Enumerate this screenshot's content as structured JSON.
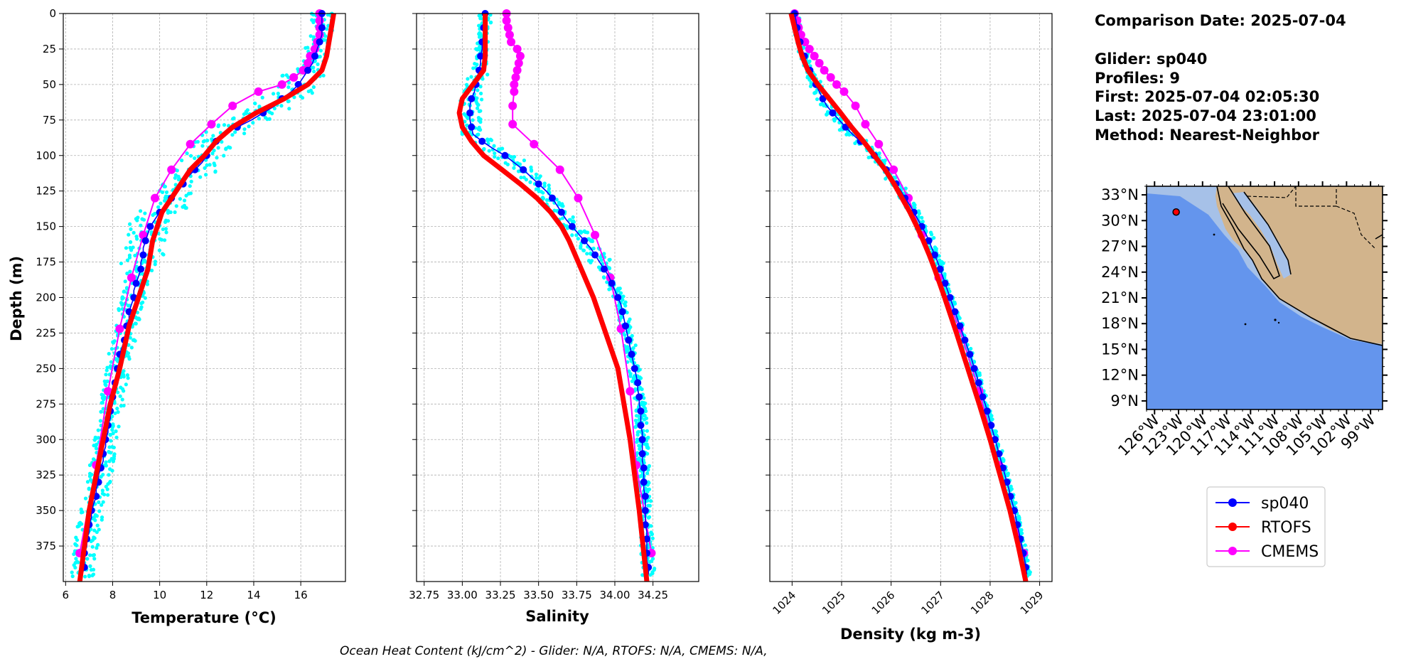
{
  "info": {
    "date": "Comparison Date: 2025-07-04",
    "glider": "Glider: sp040",
    "profiles": "Profiles: 9",
    "first": "First: 2025-07-04 02:05:30",
    "last": "Last: 2025-07-04 23:01:00",
    "method": "Method: Nearest-Neighbor"
  },
  "footer": "Ocean Heat Content (kJ/cm^2) - Glider: N/A,  RTOFS: N/A,  CMEMS: N/A,",
  "legend": [
    {
      "label": "sp040",
      "color": "#0000ff"
    },
    {
      "label": "RTOFS",
      "color": "#ff0000"
    },
    {
      "label": "CMEMS",
      "color": "#ff00ff"
    }
  ],
  "colors": {
    "glider_raw": "#00ffff",
    "sp040": "#0000ff",
    "rtofs": "#ff0000",
    "cmems": "#ff00ff",
    "ocean": "#6495ed",
    "land": "#d2b48c",
    "lakes": "#a6c1e8",
    "marker": "#ff0000"
  },
  "chart_data": [
    {
      "type": "line",
      "xlabel": "Temperature (°C)",
      "ylabel": "Depth (m)",
      "xlim": [
        5.9,
        17.9
      ],
      "ylim": [
        400,
        0
      ],
      "x_ticks": [
        6,
        8,
        10,
        12,
        14,
        16
      ],
      "y_ticks": [
        0,
        25,
        50,
        75,
        100,
        125,
        150,
        175,
        200,
        225,
        250,
        275,
        300,
        325,
        350,
        375
      ],
      "grid": true,
      "series": [
        {
          "name": "sp040",
          "depth": [
            0,
            5,
            10,
            15,
            20,
            25,
            30,
            35,
            40,
            45,
            50,
            55,
            60,
            65,
            70,
            75,
            80,
            85,
            90,
            95,
            100,
            105,
            110,
            115,
            120,
            125,
            130,
            135,
            140,
            145,
            150,
            155,
            160,
            165,
            170,
            175,
            180,
            185,
            190,
            195,
            200,
            205,
            210,
            215,
            220,
            225,
            230,
            235,
            240,
            245,
            250,
            255,
            260,
            265,
            270,
            275,
            280,
            285,
            290,
            295,
            300,
            305,
            310,
            315,
            320,
            325,
            330,
            335,
            340,
            345,
            350,
            355,
            360,
            365,
            370,
            375,
            380,
            385,
            390,
            395
          ],
          "values": [
            16.9,
            16.9,
            16.9,
            16.9,
            16.8,
            16.7,
            16.6,
            16.5,
            16.3,
            16.1,
            15.9,
            15.6,
            15.2,
            14.9,
            14.4,
            13.9,
            13.3,
            12.7,
            12.4,
            12.2,
            12.0,
            11.8,
            11.5,
            11.2,
            11.0,
            10.8,
            10.5,
            10.3,
            10.0,
            9.8,
            9.6,
            9.5,
            9.4,
            9.3,
            9.3,
            9.2,
            9.2,
            9.1,
            9.0,
            8.9,
            8.9,
            8.8,
            8.7,
            8.7,
            8.6,
            8.6,
            8.5,
            8.4,
            8.3,
            8.3,
            8.2,
            8.2,
            8.1,
            8.1,
            8.0,
            8.0,
            7.9,
            7.9,
            7.8,
            7.8,
            7.7,
            7.7,
            7.6,
            7.6,
            7.5,
            7.4,
            7.4,
            7.3,
            7.3,
            7.2,
            7.1,
            7.1,
            7.0,
            7.0,
            6.9,
            6.9,
            6.8,
            6.8,
            6.8,
            6.7
          ]
        },
        {
          "name": "RTOFS",
          "depth": [
            0,
            10,
            20,
            30,
            40,
            50,
            60,
            70,
            80,
            90,
            100,
            110,
            120,
            130,
            140,
            150,
            160,
            170,
            180,
            190,
            200,
            220,
            250,
            275,
            300,
            325,
            350,
            375,
            400
          ],
          "values": [
            17.4,
            17.3,
            17.2,
            17.1,
            16.9,
            16.3,
            15.3,
            14.1,
            13.1,
            12.4,
            11.9,
            11.3,
            10.9,
            10.5,
            10.1,
            9.9,
            9.7,
            9.6,
            9.5,
            9.3,
            9.1,
            8.7,
            8.3,
            7.9,
            7.6,
            7.3,
            7.0,
            6.8,
            6.6
          ]
        },
        {
          "name": "CMEMS",
          "depth": [
            0,
            5,
            10,
            15,
            20,
            25,
            30,
            35,
            40,
            45,
            50,
            55,
            65,
            78,
            92,
            110,
            130,
            156,
            186,
            222,
            266,
            318,
            380
          ],
          "values": [
            16.8,
            16.8,
            16.8,
            16.8,
            16.7,
            16.6,
            16.4,
            16.3,
            16.1,
            15.7,
            15.2,
            14.2,
            13.1,
            12.2,
            11.3,
            10.5,
            9.8,
            9.3,
            8.8,
            8.3,
            7.8,
            7.3,
            6.6
          ]
        }
      ]
    },
    {
      "type": "line",
      "xlabel": "Salinity",
      "xlim": [
        32.7,
        34.55
      ],
      "ylim": [
        400,
        0
      ],
      "x_ticks": [
        32.75,
        33.0,
        33.25,
        33.5,
        33.75,
        34.0,
        34.25
      ],
      "x_tick_labels": [
        "32.75",
        "33.00",
        "33.25",
        "33.50",
        "33.75",
        "34.00",
        "34.25"
      ],
      "grid": true,
      "series": [
        {
          "name": "sp040",
          "depth": [
            0,
            5,
            10,
            15,
            20,
            25,
            30,
            35,
            40,
            45,
            50,
            55,
            60,
            65,
            70,
            75,
            80,
            85,
            90,
            95,
            100,
            105,
            110,
            115,
            120,
            125,
            130,
            135,
            140,
            145,
            150,
            155,
            160,
            165,
            170,
            175,
            180,
            185,
            190,
            195,
            200,
            205,
            210,
            215,
            220,
            225,
            230,
            235,
            240,
            245,
            250,
            255,
            260,
            265,
            270,
            275,
            280,
            285,
            290,
            295,
            300,
            305,
            310,
            315,
            320,
            325,
            330,
            335,
            340,
            345,
            350,
            355,
            360,
            365,
            370,
            375,
            380,
            385,
            390,
            395
          ],
          "values": [
            33.15,
            33.15,
            33.14,
            33.14,
            33.13,
            33.13,
            33.12,
            33.12,
            33.11,
            33.1,
            33.09,
            33.08,
            33.06,
            33.05,
            33.05,
            33.05,
            33.06,
            33.07,
            33.13,
            33.2,
            33.28,
            33.34,
            33.4,
            33.45,
            33.5,
            33.55,
            33.59,
            33.62,
            33.65,
            33.68,
            33.72,
            33.76,
            33.8,
            33.84,
            33.87,
            33.9,
            33.93,
            33.96,
            33.98,
            34.0,
            34.02,
            34.04,
            34.05,
            34.06,
            34.07,
            34.08,
            34.09,
            34.1,
            34.11,
            34.12,
            34.13,
            34.14,
            34.15,
            34.15,
            34.16,
            34.16,
            34.17,
            34.17,
            34.17,
            34.18,
            34.18,
            34.18,
            34.18,
            34.18,
            34.19,
            34.19,
            34.19,
            34.19,
            34.2,
            34.2,
            34.2,
            34.2,
            34.2,
            34.21,
            34.21,
            34.21,
            34.21,
            34.21,
            34.22,
            34.22
          ]
        },
        {
          "name": "RTOFS",
          "depth": [
            0,
            10,
            20,
            30,
            40,
            50,
            60,
            70,
            80,
            90,
            100,
            110,
            120,
            130,
            140,
            150,
            160,
            170,
            180,
            190,
            200,
            250,
            300,
            350,
            400
          ],
          "values": [
            33.15,
            33.15,
            33.15,
            33.15,
            33.14,
            33.07,
            33.0,
            32.98,
            33.0,
            33.06,
            33.14,
            33.26,
            33.38,
            33.49,
            33.58,
            33.65,
            33.7,
            33.74,
            33.78,
            33.82,
            33.86,
            34.02,
            34.1,
            34.16,
            34.21
          ]
        },
        {
          "name": "CMEMS",
          "depth": [
            0,
            5,
            10,
            15,
            20,
            25,
            30,
            35,
            40,
            45,
            50,
            55,
            65,
            78,
            92,
            110,
            130,
            156,
            186,
            222,
            266,
            318,
            380
          ],
          "values": [
            33.29,
            33.29,
            33.3,
            33.31,
            33.32,
            33.36,
            33.38,
            33.37,
            33.36,
            33.35,
            33.34,
            33.34,
            33.33,
            33.33,
            33.47,
            33.64,
            33.76,
            33.87,
            33.97,
            34.04,
            34.1,
            34.14,
            34.24
          ]
        }
      ]
    },
    {
      "type": "line",
      "xlabel": "Density (kg m-3)",
      "xlim": [
        1023.55,
        1029.25
      ],
      "ylim": [
        400,
        0
      ],
      "x_ticks": [
        1024,
        1025,
        1026,
        1027,
        1028,
        1029
      ],
      "grid": true,
      "series": [
        {
          "name": "sp040",
          "depth": [
            0,
            5,
            10,
            15,
            20,
            25,
            30,
            35,
            40,
            45,
            50,
            55,
            60,
            65,
            70,
            75,
            80,
            85,
            90,
            95,
            100,
            105,
            110,
            115,
            120,
            125,
            130,
            135,
            140,
            145,
            150,
            155,
            160,
            165,
            170,
            175,
            180,
            185,
            190,
            195,
            200,
            205,
            210,
            215,
            220,
            225,
            230,
            235,
            240,
            245,
            250,
            255,
            260,
            265,
            270,
            275,
            280,
            285,
            290,
            295,
            300,
            305,
            310,
            315,
            320,
            325,
            330,
            335,
            340,
            345,
            350,
            355,
            360,
            365,
            370,
            375,
            380,
            385,
            390,
            395
          ],
          "values": [
            1024.05,
            1024.08,
            1024.1,
            1024.13,
            1024.16,
            1024.2,
            1024.25,
            1024.3,
            1024.36,
            1024.42,
            1024.48,
            1024.55,
            1024.62,
            1024.7,
            1024.82,
            1024.95,
            1025.08,
            1025.22,
            1025.38,
            1025.52,
            1025.66,
            1025.78,
            1025.9,
            1026.0,
            1026.1,
            1026.2,
            1026.28,
            1026.38,
            1026.46,
            1026.54,
            1026.62,
            1026.7,
            1026.76,
            1026.82,
            1026.88,
            1026.94,
            1026.99,
            1027.04,
            1027.09,
            1027.14,
            1027.19,
            1027.24,
            1027.29,
            1027.34,
            1027.39,
            1027.44,
            1027.49,
            1027.54,
            1027.59,
            1027.64,
            1027.68,
            1027.73,
            1027.77,
            1027.81,
            1027.85,
            1027.9,
            1027.94,
            1027.98,
            1028.02,
            1028.06,
            1028.1,
            1028.14,
            1028.18,
            1028.22,
            1028.26,
            1028.3,
            1028.34,
            1028.38,
            1028.41,
            1028.45,
            1028.49,
            1028.52,
            1028.55,
            1028.58,
            1028.61,
            1028.64,
            1028.67,
            1028.7,
            1028.72,
            1028.74
          ]
        },
        {
          "name": "RTOFS",
          "depth": [
            0,
            10,
            20,
            30,
            40,
            50,
            60,
            70,
            80,
            90,
            100,
            110,
            120,
            130,
            140,
            150,
            160,
            170,
            180,
            190,
            200,
            225,
            250,
            275,
            300,
            325,
            350,
            375,
            400
          ],
          "values": [
            1023.98,
            1024.05,
            1024.12,
            1024.2,
            1024.32,
            1024.52,
            1024.75,
            1024.98,
            1025.2,
            1025.44,
            1025.66,
            1025.88,
            1026.06,
            1026.22,
            1026.38,
            1026.52,
            1026.65,
            1026.77,
            1026.88,
            1026.98,
            1027.08,
            1027.32,
            1027.55,
            1027.78,
            1028.0,
            1028.2,
            1028.4,
            1028.57,
            1028.72
          ]
        },
        {
          "name": "CMEMS",
          "depth": [
            0,
            5,
            10,
            15,
            20,
            25,
            30,
            35,
            40,
            45,
            50,
            55,
            65,
            78,
            92,
            110,
            130,
            156,
            186,
            222,
            266,
            318,
            380
          ],
          "values": [
            1024.05,
            1024.1,
            1024.13,
            1024.18,
            1024.26,
            1024.35,
            1024.45,
            1024.55,
            1024.65,
            1024.78,
            1024.9,
            1025.05,
            1025.28,
            1025.48,
            1025.75,
            1026.05,
            1026.35,
            1026.62,
            1026.96,
            1027.38,
            1027.78,
            1028.18,
            1028.68
          ]
        }
      ]
    },
    {
      "type": "map",
      "lat_ticks": [
        "33°N",
        "30°N",
        "27°N",
        "24°N",
        "21°N",
        "18°N",
        "15°N",
        "12°N",
        "9°N"
      ],
      "lon_ticks": [
        "126°W",
        "123°W",
        "120°W",
        "117°W",
        "114°W",
        "111°W",
        "108°W",
        "105°W",
        "102°W",
        "99°W"
      ],
      "lat_range": [
        8,
        34
      ],
      "lon_range": [
        -127,
        -97.5
      ],
      "glider_position": {
        "lon": -123.3,
        "lat": 31.0
      }
    }
  ]
}
